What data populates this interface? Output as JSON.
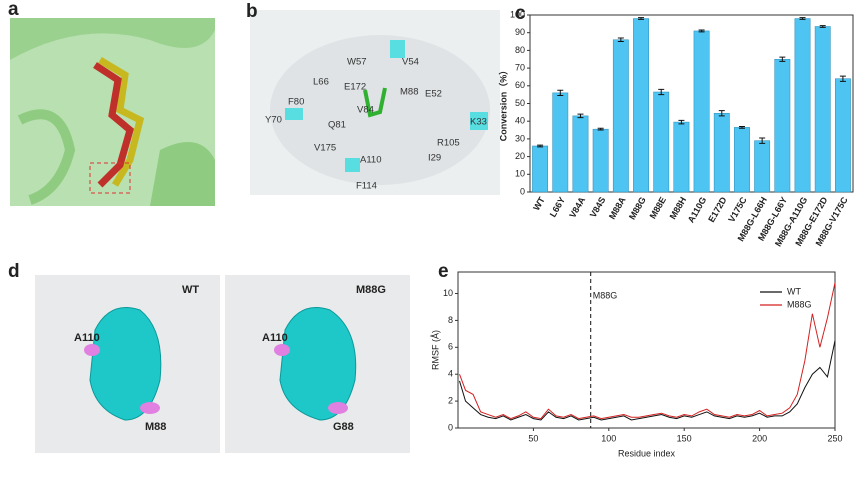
{
  "panels": [
    "a",
    "b",
    "c",
    "d",
    "e"
  ],
  "panel_b": {
    "residues": [
      "W57",
      "V54",
      "L66",
      "E172",
      "M88",
      "E52",
      "F80",
      "V84",
      "Y70",
      "Q81",
      "K33",
      "V175",
      "A110",
      "I29",
      "R105",
      "F114"
    ]
  },
  "panel_d": {
    "left": {
      "title": "WT",
      "labels": [
        "A110",
        "M88"
      ]
    },
    "right": {
      "title": "M88G",
      "labels": [
        "A110",
        "G88"
      ]
    }
  },
  "chart_data": [
    {
      "type": "bar",
      "ylabel": "Conversion（%）",
      "color": "#4dc4f2",
      "categories": [
        "WT",
        "L66Y",
        "V84A",
        "V84S",
        "M88A",
        "M88G",
        "M88E",
        "M88H",
        "A110G",
        "E172D",
        "V175C",
        "M88G-L66H",
        "M88G-L66Y",
        "M88G-A110G",
        "M88G-E172D",
        "M88G-V175C"
      ],
      "values": [
        26,
        56,
        43,
        35.5,
        86,
        98,
        56.5,
        39.5,
        91,
        44.5,
        36.5,
        29,
        75,
        98,
        93.5,
        64
      ],
      "errors": [
        0.5,
        1.5,
        1,
        0.5,
        1,
        0.5,
        1.5,
        1,
        0.5,
        1.5,
        0.5,
        1.5,
        1.2,
        0.5,
        0.5,
        1.5
      ],
      "ylim": [
        0,
        100
      ],
      "yticks": [
        0,
        10,
        20,
        30,
        40,
        50,
        60,
        70,
        80,
        90,
        100
      ]
    },
    {
      "type": "line",
      "xlabel": "Residue index",
      "ylabel": "RMSF (Å)",
      "legend": "upper right",
      "x": [
        1,
        5,
        10,
        15,
        20,
        25,
        30,
        35,
        40,
        45,
        50,
        55,
        60,
        65,
        70,
        75,
        80,
        85,
        90,
        95,
        100,
        105,
        110,
        115,
        120,
        125,
        130,
        135,
        140,
        145,
        150,
        155,
        160,
        165,
        170,
        175,
        180,
        185,
        190,
        195,
        200,
        205,
        210,
        215,
        220,
        225,
        230,
        235,
        240,
        245,
        250
      ],
      "series": [
        {
          "name": "WT",
          "color": "#111111",
          "values": [
            3.5,
            2.0,
            1.5,
            1.0,
            0.8,
            0.7,
            0.9,
            0.6,
            0.8,
            1.0,
            0.7,
            0.6,
            1.2,
            0.8,
            0.7,
            0.9,
            0.6,
            0.7,
            0.8,
            0.6,
            0.7,
            0.8,
            0.9,
            0.6,
            0.7,
            0.8,
            0.9,
            1.0,
            0.8,
            0.7,
            0.9,
            0.8,
            1.0,
            1.2,
            0.9,
            0.8,
            0.7,
            0.9,
            0.8,
            0.9,
            1.1,
            0.8,
            0.9,
            0.9,
            1.2,
            1.8,
            3.0,
            4.0,
            4.5,
            3.8,
            6.5
          ]
        },
        {
          "name": "M88G",
          "color": "#d42020",
          "values": [
            4.0,
            2.8,
            2.5,
            1.2,
            1.0,
            0.8,
            1.0,
            0.7,
            0.9,
            1.2,
            0.8,
            0.7,
            1.4,
            0.9,
            0.8,
            1.0,
            0.7,
            0.8,
            0.9,
            0.7,
            0.8,
            0.9,
            1.0,
            0.8,
            0.8,
            0.9,
            1.0,
            1.1,
            0.9,
            0.8,
            1.0,
            0.9,
            1.2,
            1.4,
            1.0,
            0.9,
            0.8,
            1.0,
            0.9,
            1.0,
            1.3,
            0.9,
            1.0,
            1.1,
            1.5,
            2.5,
            5.0,
            8.5,
            6.0,
            8.2,
            10.8
          ]
        }
      ],
      "annotations": [
        {
          "x": 88,
          "text": "M88G"
        }
      ],
      "xlim": [
        0,
        250
      ],
      "xticks": [
        50,
        100,
        150,
        200,
        250
      ],
      "ylim": [
        0,
        11.6
      ],
      "yticks": [
        0,
        2,
        4,
        6,
        8,
        10
      ]
    }
  ]
}
